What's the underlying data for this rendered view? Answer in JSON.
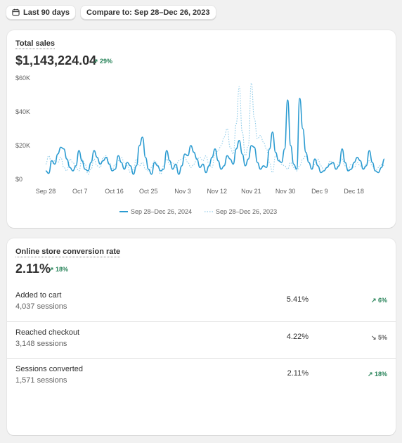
{
  "filters": {
    "date_range": "Last 90 days",
    "compare": "Compare to: Sep 28–Dec 26, 2023"
  },
  "sales": {
    "title": "Total sales",
    "amount": "$1,143,224.04",
    "change": "↗ 29%",
    "change_color": "#29845a"
  },
  "chart_data": {
    "type": "line",
    "title": "",
    "xlabel": "",
    "ylabel": "",
    "ylim": [
      0,
      60000
    ],
    "y_ticks": [
      "$60K",
      "$40K",
      "$20K",
      "$0"
    ],
    "x_ticks": [
      "Sep 28",
      "Oct 7",
      "Oct 16",
      "Oct 25",
      "Nov 3",
      "Nov 12",
      "Nov 21",
      "Nov 30",
      "Dec 9",
      "Dec 18"
    ],
    "grid": false,
    "legend_position": "bottom",
    "series": [
      {
        "name": "Sep 28–Dec 26, 2024",
        "color": "#2b9bd1",
        "style": "solid",
        "values": [
          5000,
          3500,
          11000,
          9000,
          15000,
          19000,
          18000,
          12000,
          7000,
          5000,
          8000,
          17000,
          11000,
          6000,
          5000,
          10000,
          17000,
          13000,
          9000,
          11000,
          13000,
          9000,
          5000,
          6000,
          14000,
          10000,
          6000,
          10000,
          8000,
          3000,
          8000,
          20000,
          25000,
          13000,
          6000,
          3000,
          10000,
          8000,
          5000,
          6000,
          17000,
          11000,
          6000,
          9000,
          3000,
          8000,
          15000,
          14000,
          20000,
          16000,
          12000,
          7000,
          9000,
          4000,
          8000,
          13000,
          18000,
          11000,
          6000,
          8000,
          14000,
          12000,
          9000,
          18000,
          23000,
          15000,
          8000,
          12000,
          20000,
          19000,
          10000,
          6000,
          8000,
          7000,
          18000,
          28000,
          16000,
          11000,
          10000,
          18000,
          47000,
          20000,
          9000,
          6000,
          48000,
          30000,
          16000,
          10000,
          6000,
          12000,
          8000,
          4000,
          5000,
          7000,
          9000,
          10000,
          6000,
          8000,
          18000,
          10000,
          5000,
          6000,
          10000,
          13000,
          11000,
          6000,
          8000,
          17000,
          10000,
          5000,
          4000,
          7000,
          12000
        ]
      },
      {
        "name": "Sep 28–Dec 26, 2023",
        "color": "#8fcbe8",
        "style": "dotted",
        "values": [
          9000,
          14000,
          9000,
          11000,
          10000,
          13000,
          7000,
          5000,
          12000,
          10000,
          7000,
          5000,
          12000,
          9000,
          3000,
          6000,
          12000,
          8000,
          7000,
          13000,
          14000,
          10000,
          6000,
          9000,
          11000,
          13000,
          10000,
          8000,
          4000,
          6000,
          12000,
          8000,
          10000,
          6000,
          5000,
          7000,
          11000,
          9000,
          3000,
          8000,
          12000,
          9000,
          10000,
          7000,
          11000,
          12000,
          13000,
          10000,
          7000,
          9000,
          12000,
          13000,
          11000,
          14000,
          9000,
          7000,
          15000,
          17000,
          20000,
          25000,
          30000,
          19000,
          15000,
          33000,
          55000,
          28000,
          14000,
          20000,
          57000,
          36000,
          24000,
          26000,
          22000,
          18000,
          10000,
          4000,
          14000,
          12000,
          9000,
          8000,
          6000,
          10000,
          7000,
          5000,
          8000,
          12000,
          14000,
          10000,
          6000,
          9000,
          12000,
          8000,
          5000,
          7000,
          11000,
          9000,
          6000,
          10000,
          12000,
          8000,
          6000,
          9000,
          7000,
          10000,
          8000,
          6000,
          9000,
          11000,
          8000,
          5000,
          7000,
          9000,
          8000
        ]
      }
    ]
  },
  "conversion": {
    "title": "Online store conversion rate",
    "rate": "2.11%",
    "change": "↗ 18%",
    "rows": [
      {
        "name": "Added to cart",
        "sessions": "4,037 sessions",
        "rate": "5.41%",
        "change": "↗ 6%",
        "trend": "up"
      },
      {
        "name": "Reached checkout",
        "sessions": "3,148 sessions",
        "rate": "4.22%",
        "change": "↘ 5%",
        "trend": "down"
      },
      {
        "name": "Sessions converted",
        "sessions": "1,571 sessions",
        "rate": "2.11%",
        "change": "↗ 18%",
        "trend": "up"
      }
    ]
  }
}
